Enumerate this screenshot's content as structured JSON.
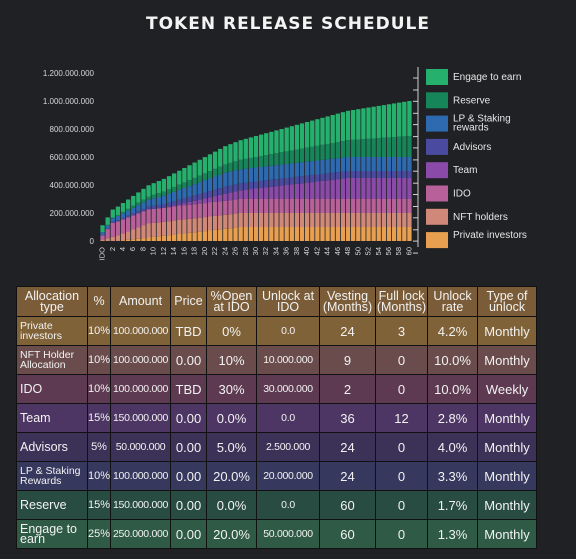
{
  "title": "TOKEN RELEASE SCHEDULE",
  "chart_data": {
    "type": "area",
    "stacked": true,
    "title": "TOKEN RELEASE SCHEDULE",
    "x_label_prefix": "IDO",
    "x_ticks": [
      "IDO",
      "2",
      "4",
      "6",
      "8",
      "10",
      "12",
      "14",
      "16",
      "18",
      "20",
      "22",
      "24",
      "26",
      "28",
      "30",
      "32",
      "34",
      "36",
      "38",
      "40",
      "42",
      "44",
      "46",
      "48",
      "50",
      "52",
      "54",
      "56",
      "58",
      "60"
    ],
    "y_ticks": [
      "0",
      "200.000.000",
      "400.000.000",
      "600.000.000",
      "800.000.000",
      "1.000.000.000",
      "1.200.000.000"
    ],
    "ylim": [
      0,
      1200000000
    ],
    "xlim": [
      0,
      60
    ],
    "legend_position": "right",
    "series": [
      {
        "name": "Private investors",
        "color": "#e8a050",
        "total": 100000000,
        "at_ido": 0,
        "cliff": 3,
        "vesting": 24
      },
      {
        "name": "NFT holders",
        "color": "#d08878",
        "total": 100000000,
        "at_ido": 10000000,
        "cliff": 0,
        "vesting": 9
      },
      {
        "name": "IDO",
        "color": "#b8609a",
        "total": 100000000,
        "at_ido": 30000000,
        "cliff": 0,
        "vesting": 2
      },
      {
        "name": "Team",
        "color": "#8a4aa8",
        "total": 150000000,
        "at_ido": 0,
        "cliff": 12,
        "vesting": 36
      },
      {
        "name": "Advisors",
        "color": "#4a4aa0",
        "total": 50000000,
        "at_ido": 2500000,
        "cliff": 0,
        "vesting": 24
      },
      {
        "name": "LP & Staking rewards",
        "color": "#2e6ab0",
        "total": 100000000,
        "at_ido": 20000000,
        "cliff": 0,
        "vesting": 24
      },
      {
        "name": "Reserve",
        "color": "#17855a",
        "total": 150000000,
        "at_ido": 0,
        "cliff": 0,
        "vesting": 60
      },
      {
        "name": "Engage to earn",
        "color": "#26b06e",
        "total": 250000000,
        "at_ido": 50000000,
        "cliff": 0,
        "vesting": 60
      }
    ],
    "legend": [
      "Engage to earn",
      "Reserve",
      "LP & Staking rewards",
      "Advisors",
      "Team",
      "IDO",
      "NFT holders",
      "Private investors"
    ]
  },
  "table": {
    "headers": [
      "Allocation type",
      "%",
      "Amount",
      "Price",
      "%Open at IDO",
      "Unlock at IDO",
      "Vesting (Months)",
      "Full lock (Months)",
      "Unlock rate",
      "Type of unlock"
    ],
    "rows": [
      [
        "Private investors",
        "10%",
        "100.000.000",
        "TBD",
        "0%",
        "0.0",
        "24",
        "3",
        "4.2%",
        "Monthly"
      ],
      [
        "NFT Holder Allocation",
        "10%",
        "100.000.000",
        "0.00",
        "10%",
        "10.000.000",
        "9",
        "0",
        "10.0%",
        "Monthly"
      ],
      [
        "IDO",
        "10%",
        "100.000.000",
        "TBD",
        "30%",
        "30.000.000",
        "2",
        "0",
        "10.0%",
        "Weekly"
      ],
      [
        "Team",
        "15%",
        "150.000.000",
        "0.00",
        "0.0%",
        "0.0",
        "36",
        "12",
        "2.8%",
        "Monthly"
      ],
      [
        "Advisors",
        "5%",
        "50.000.000",
        "0.00",
        "5.0%",
        "2.500.000",
        "24",
        "0",
        "4.0%",
        "Monthly"
      ],
      [
        "LP & Staking Rewards",
        "10%",
        "100.000.000",
        "0.00",
        "20.0%",
        "20.000.000",
        "24",
        "0",
        "3.3%",
        "Monthly"
      ],
      [
        "Reserve",
        "15%",
        "150.000.000",
        "0.00",
        "0.0%",
        "0.0",
        "60",
        "0",
        "1.7%",
        "Monthly"
      ],
      [
        "Engage to earn",
        "25%",
        "250.000.000",
        "0.00",
        "20.0%",
        "50.000.000",
        "60",
        "0",
        "1.3%",
        "Monthly"
      ]
    ],
    "row_colors": [
      "#806238",
      "#6a4c4c",
      "#5e3a52",
      "#4e3664",
      "#3c3258",
      "#36385e",
      "#284c42",
      "#2e5a46"
    ],
    "header_color": "#7a5c38"
  }
}
